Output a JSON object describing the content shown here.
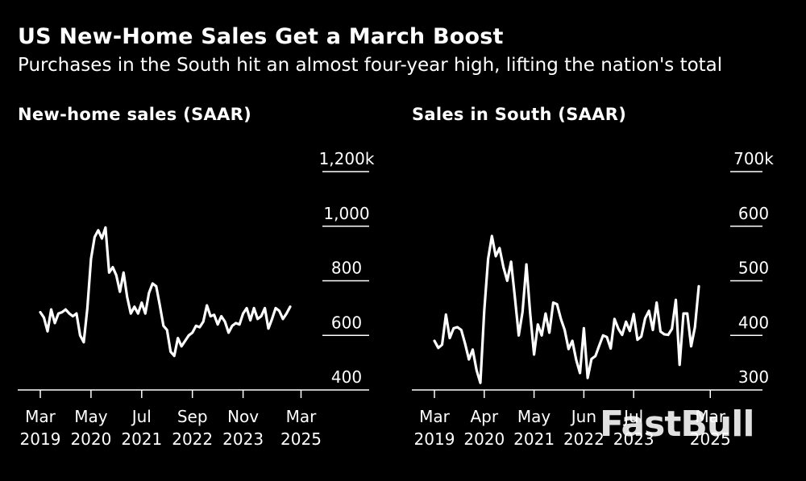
{
  "title": "US New-Home Sales Get a March Boost",
  "subtitle": "Purchases in the South hit an almost four-year high, lifting the nation's total",
  "watermark": "FastBull",
  "colors": {
    "background": "#000000",
    "line": "#ffffff"
  },
  "chart_data": [
    {
      "type": "line",
      "title": "New-home sales (SAAR)",
      "xlabel": "",
      "ylabel": "",
      "ylim": [
        400,
        1200
      ],
      "y_ticks": [
        400,
        600,
        800,
        1000,
        1200
      ],
      "y_tick_labels": [
        "400",
        "600",
        "800",
        "1,000",
        "1,200k"
      ],
      "x_ticks": [
        {
          "pos": 0,
          "month": "Mar",
          "year": "2019"
        },
        {
          "pos": 14,
          "month": "May",
          "year": "2020"
        },
        {
          "pos": 28,
          "month": "Jul",
          "year": "2021"
        },
        {
          "pos": 42,
          "month": "Sep",
          "year": "2022"
        },
        {
          "pos": 56,
          "month": "Nov",
          "year": "2023"
        },
        {
          "pos": 72,
          "month": "Mar",
          "year": "2025"
        }
      ],
      "series": [
        {
          "name": "New-home sales",
          "values": [
            685,
            665,
            615,
            695,
            645,
            680,
            685,
            695,
            680,
            670,
            680,
            600,
            575,
            700,
            880,
            960,
            985,
            955,
            995,
            830,
            850,
            820,
            760,
            830,
            740,
            680,
            705,
            680,
            720,
            680,
            755,
            790,
            780,
            710,
            635,
            620,
            540,
            525,
            590,
            560,
            580,
            600,
            610,
            635,
            630,
            650,
            710,
            670,
            675,
            640,
            670,
            650,
            610,
            635,
            645,
            640,
            680,
            700,
            655,
            700,
            660,
            670,
            700,
            625,
            660,
            700,
            690,
            660,
            680,
            705
          ]
        }
      ]
    },
    {
      "type": "line",
      "title": "Sales in South (SAAR)",
      "xlabel": "",
      "ylabel": "",
      "ylim": [
        300,
        700
      ],
      "y_ticks": [
        300,
        400,
        500,
        600,
        700
      ],
      "y_tick_labels": [
        "300",
        "400",
        "500",
        "600",
        "700k"
      ],
      "x_ticks": [
        {
          "pos": 0,
          "month": "Mar",
          "year": "2019"
        },
        {
          "pos": 13,
          "month": "Apr",
          "year": "2020"
        },
        {
          "pos": 26,
          "month": "May",
          "year": "2021"
        },
        {
          "pos": 39,
          "month": "Jun",
          "year": "2022"
        },
        {
          "pos": 52,
          "month": "Jul",
          "year": "2023"
        },
        {
          "pos": 72,
          "month": "Mar",
          "year": "2025"
        }
      ],
      "series": [
        {
          "name": "Sales in South",
          "values": [
            390,
            377,
            383,
            438,
            395,
            413,
            415,
            410,
            385,
            356,
            374,
            336,
            313,
            445,
            540,
            582,
            545,
            560,
            525,
            500,
            535,
            470,
            400,
            443,
            530,
            440,
            365,
            420,
            400,
            440,
            405,
            460,
            457,
            430,
            410,
            375,
            390,
            355,
            331,
            413,
            322,
            357,
            362,
            381,
            400,
            397,
            376,
            430,
            412,
            401,
            425,
            408,
            439,
            392,
            398,
            431,
            445,
            410,
            460,
            407,
            402,
            401,
            412,
            465,
            346,
            440,
            440,
            380,
            415,
            490
          ]
        }
      ]
    }
  ]
}
